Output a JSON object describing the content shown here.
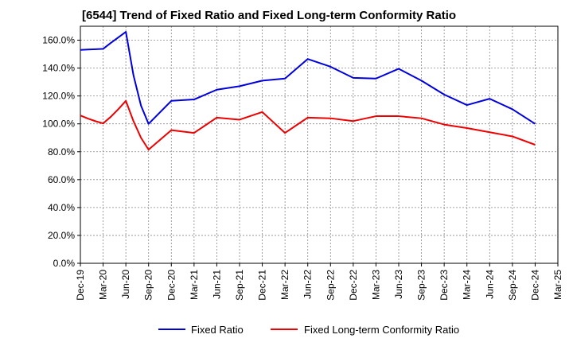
{
  "chart_data": {
    "type": "line",
    "title": "[6544]  Trend of Fixed Ratio and Fixed Long-term Conformity Ratio",
    "xlabel": "",
    "ylabel": "",
    "ylim": [
      0,
      170
    ],
    "y_ticks": [
      0,
      20,
      40,
      60,
      80,
      100,
      120,
      140,
      160
    ],
    "y_tick_labels": [
      "0.0%",
      "20.0%",
      "40.0%",
      "60.0%",
      "80.0%",
      "100.0%",
      "120.0%",
      "140.0%",
      "160.0%"
    ],
    "x_tick_labels": [
      "Dec-19",
      "Mar-20",
      "Jun-20",
      "Sep-20",
      "Dec-20",
      "Mar-21",
      "Jun-21",
      "Sep-21",
      "Dec-21",
      "Mar-22",
      "Jun-22",
      "Sep-22",
      "Dec-22",
      "Mar-23",
      "Jun-23",
      "Sep-23",
      "Dec-23",
      "Mar-24",
      "Jun-24",
      "Sep-24",
      "Dec-24",
      "Mar-25"
    ],
    "x_start_month": "Dec-19",
    "x_range_quarters": [
      0,
      21
    ],
    "grid": true,
    "legend_position": "bottom",
    "series": [
      {
        "name": "Fixed Ratio",
        "color": "#0000dd",
        "x": [
          0,
          0.333,
          0.667,
          1,
          1.333,
          1.667,
          2,
          2.333,
          2.667,
          3,
          4,
          5,
          6,
          7,
          8,
          9,
          10,
          11,
          12,
          13,
          14,
          15,
          16,
          17,
          18,
          19,
          20
        ],
        "values": [
          153,
          153.3,
          153.5,
          153.8,
          158,
          162,
          166,
          135,
          113,
          100,
          116.5,
          117.5,
          124.5,
          127,
          131,
          132.5,
          146.5,
          141,
          133,
          132.5,
          139.5,
          131,
          121,
          113.5,
          118,
          110.5,
          100
        ]
      },
      {
        "name": "Fixed Long-term Conformity Ratio",
        "color": "#ee0000",
        "x": [
          0,
          0.333,
          0.667,
          1,
          1.333,
          1.667,
          2,
          2.333,
          2.667,
          3,
          4,
          5,
          6,
          7,
          8,
          9,
          10,
          11,
          12,
          13,
          14,
          15,
          16,
          17,
          18,
          19,
          20
        ],
        "values": [
          106,
          103.8,
          101.9,
          100.3,
          105,
          110.5,
          116.5,
          102,
          90,
          81.5,
          95.5,
          93.5,
          104.5,
          103,
          108.5,
          93.5,
          104.5,
          104,
          102,
          105.5,
          105.5,
          104,
          99.5,
          97,
          94,
          91,
          85
        ]
      }
    ]
  }
}
